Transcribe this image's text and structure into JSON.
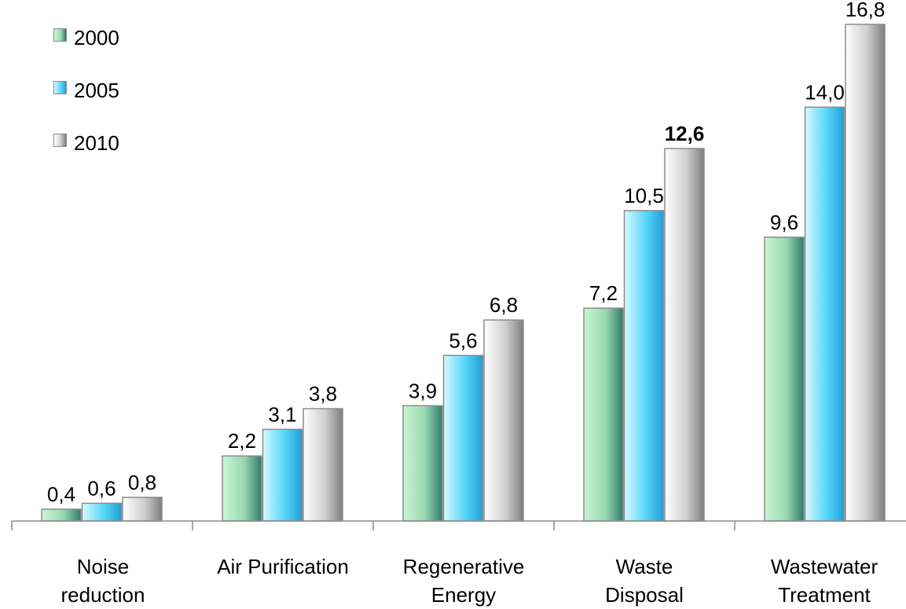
{
  "chart_data": {
    "type": "bar",
    "title": "",
    "xlabel": "",
    "ylabel": "",
    "categories": [
      [
        "Noise",
        "reduction"
      ],
      [
        "Air Purification"
      ],
      [
        "Regenerative",
        "Energy"
      ],
      [
        "Waste",
        "Disposal"
      ],
      [
        "Wastewater",
        "Treatment"
      ]
    ],
    "series": [
      {
        "name": "2000",
        "values": [
          0.4,
          2.2,
          3.9,
          7.2,
          9.6
        ],
        "labels": [
          "0,4",
          "2,2",
          "3,9",
          "7,2",
          "9,6"
        ]
      },
      {
        "name": "2005",
        "values": [
          0.6,
          3.1,
          5.6,
          10.5,
          14.0
        ],
        "labels": [
          "0,6",
          "3,1",
          "5,6",
          "10,5",
          "14,0"
        ]
      },
      {
        "name": "2010",
        "values": [
          0.8,
          3.8,
          6.8,
          12.6,
          16.8
        ],
        "labels": [
          "0,8",
          "3,8",
          "6,8",
          "12,6",
          "16,8"
        ]
      }
    ],
    "ylim": [
      0,
      16.8
    ],
    "grid": false,
    "legend_position": "top-left",
    "bold_value_label": "12,6",
    "colors": {
      "2000": [
        "#c9f6d3",
        "#9ad9b2",
        "#2f7a6a"
      ],
      "2005": [
        "#d6f9ff",
        "#57d6f8",
        "#1f9fd6"
      ],
      "2010": [
        "#ffffff",
        "#cfcfcf",
        "#7d7d7d"
      ],
      "bar_border": "#8c8c8c",
      "axis": "#8c8c8c"
    }
  },
  "legend": {
    "items": [
      {
        "label": "2000"
      },
      {
        "label": "2005"
      },
      {
        "label": "2010"
      }
    ]
  },
  "xaxis": {
    "labels": [
      {
        "line1": "Noise",
        "line2": "reduction"
      },
      {
        "line1": "Air Purification",
        "line2": ""
      },
      {
        "line1": "Regenerative",
        "line2": "Energy"
      },
      {
        "line1": "Waste",
        "line2": "Disposal"
      },
      {
        "line1": "Wastewater",
        "line2": "Treatment"
      }
    ]
  }
}
